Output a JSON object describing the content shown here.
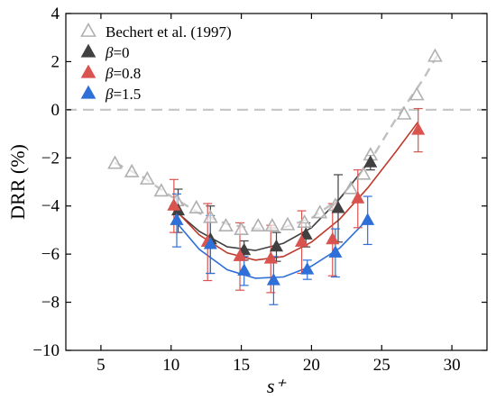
{
  "chart_data": {
    "type": "scatter",
    "xlabel": "s⁺",
    "ylabel": "DRR (%)",
    "xlim": [
      2.5,
      32.5
    ],
    "ylim": [
      -10,
      4
    ],
    "xticks": [
      5,
      10,
      15,
      20,
      25,
      30
    ],
    "yticks": [
      4,
      2,
      0,
      -2,
      -4,
      -6,
      -8,
      -10
    ],
    "ytick_labels": [
      "4",
      "2",
      "0",
      "−2",
      "−4",
      "−6",
      "−8",
      "−10"
    ],
    "grid": false,
    "legend_position": "top-left",
    "reference_line": {
      "y": 0,
      "style": "dashed",
      "color": "#c8c8c8"
    },
    "series": [
      {
        "name": "Bechert et al. (1997)",
        "marker": "open-triangle",
        "color": "#b0b0b0",
        "x": [
          6.0,
          7.2,
          8.3,
          9.3,
          10.4,
          11.8,
          12.8,
          13.9,
          15.0,
          16.2,
          17.2,
          18.3,
          19.5,
          20.6,
          21.7,
          22.8,
          23.7,
          24.2,
          26.6,
          27.5,
          28.8
        ],
        "y": [
          -2.25,
          -2.6,
          -2.9,
          -3.4,
          -3.8,
          -4.1,
          -4.5,
          -4.85,
          -5.0,
          -4.85,
          -4.85,
          -4.8,
          -4.7,
          -4.3,
          -4.0,
          -3.3,
          -2.7,
          -1.9,
          -0.2,
          0.6,
          2.2
        ],
        "trend": {
          "style": "dashed",
          "color": "#c0c0c0",
          "x": [
            6,
            8,
            10,
            12,
            14,
            16,
            18,
            20,
            22,
            24,
            26,
            28,
            29
          ],
          "y": [
            -2.2,
            -2.8,
            -3.6,
            -4.3,
            -4.75,
            -4.95,
            -4.9,
            -4.5,
            -3.7,
            -2.3,
            -0.4,
            1.3,
            2.3
          ]
        }
      },
      {
        "name": "β=0",
        "marker": "filled-triangle",
        "color": "#404040",
        "x": [
          10.5,
          12.8,
          15.2,
          17.5,
          19.6,
          21.9,
          24.2
        ],
        "y": [
          -4.2,
          -5.4,
          -5.85,
          -5.7,
          -5.2,
          -4.1,
          -2.2
        ],
        "err": [
          0.9,
          1.4,
          0.4,
          0.6,
          0.5,
          1.4,
          0.3
        ],
        "fit": {
          "color": "#404040",
          "x": [
            10.5,
            12,
            14,
            16,
            18,
            20,
            22,
            24.2
          ],
          "y": [
            -4.3,
            -5.05,
            -5.7,
            -5.85,
            -5.55,
            -4.9,
            -3.7,
            -2.1
          ]
        }
      },
      {
        "name": "β=0.8",
        "marker": "filled-triangle",
        "color": "#d9534f",
        "x": [
          10.2,
          12.6,
          14.9,
          17.1,
          19.3,
          21.5,
          23.3,
          27.6
        ],
        "y": [
          -4.0,
          -5.5,
          -6.1,
          -6.2,
          -5.5,
          -5.4,
          -3.7,
          -0.85
        ],
        "err": [
          1.1,
          1.6,
          1.4,
          1.4,
          1.3,
          1.5,
          1.2,
          0.9
        ],
        "fit": {
          "color": "#c0392b",
          "x": [
            10.2,
            12,
            14,
            16,
            18,
            20,
            22,
            24,
            26,
            27.6
          ],
          "y": [
            -4.1,
            -5.2,
            -5.95,
            -6.25,
            -6.1,
            -5.5,
            -4.55,
            -3.25,
            -1.75,
            -0.5
          ]
        }
      },
      {
        "name": "β=1.5",
        "marker": "filled-triangle",
        "color": "#2e6fd8",
        "x": [
          10.4,
          12.8,
          15.2,
          17.3,
          19.7,
          21.7,
          24.0
        ],
        "y": [
          -4.6,
          -5.6,
          -6.7,
          -7.1,
          -6.65,
          -5.95,
          -4.6
        ],
        "err": [
          1.1,
          1.2,
          0.6,
          1.0,
          0.4,
          1.0,
          1.0
        ],
        "fit": {
          "color": "#2e6fd8",
          "x": [
            10.4,
            12,
            14,
            16,
            18,
            20,
            22,
            24
          ],
          "y": [
            -4.7,
            -5.8,
            -6.65,
            -7.0,
            -6.95,
            -6.5,
            -5.75,
            -4.55
          ]
        }
      }
    ]
  }
}
